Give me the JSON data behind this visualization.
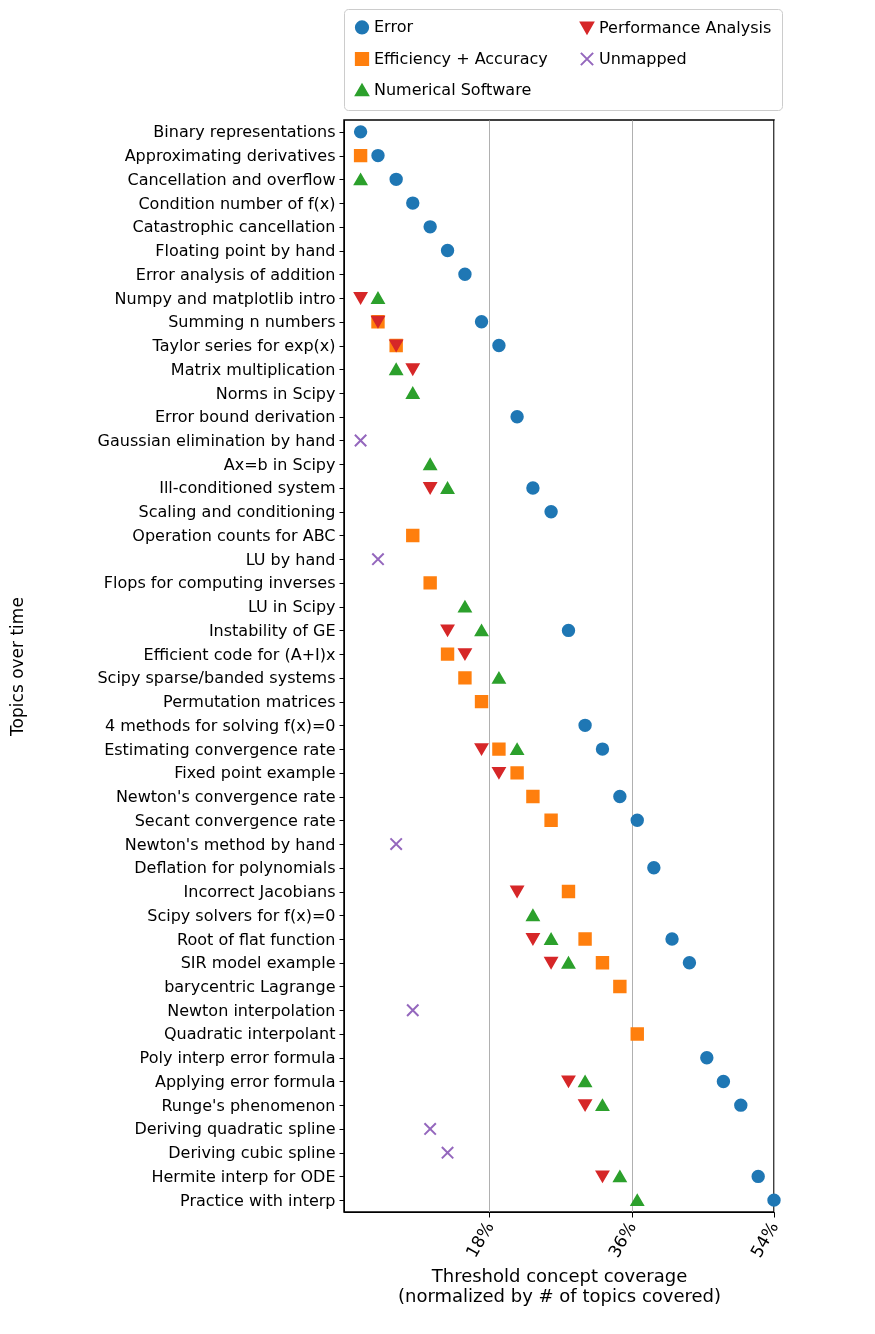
{
  "chart_data": {
    "type": "scatter",
    "xlabel": "Threshold concept coverage\n(normalized by # of topics covered)",
    "ylabel": "Topics over time",
    "categories": [
      "Binary representations",
      "Approximating derivatives",
      "Cancellation and overflow",
      "Condition number of f(x)",
      "Catastrophic cancellation",
      "Floating point by hand",
      "Error analysis of addition",
      "Numpy and matplotlib intro",
      "Summing n numbers",
      "Taylor series for exp(x)",
      "Matrix multiplication",
      "Norms in Scipy",
      "Error bound derivation",
      "Gaussian elimination by hand",
      "Ax=b in Scipy",
      "Ill-conditioned system",
      "Scaling and conditioning",
      "Operation counts for ABC",
      "LU by hand",
      "Flops for computing inverses",
      "LU in Scipy",
      "Instability of GE",
      "Efficient code for (A+I)x",
      "Scipy sparse/banded systems",
      "Permutation matrices",
      "4 methods for solving f(x)=0",
      "Estimating convergence rate",
      "Fixed point example",
      "Newton's convergence rate",
      "Secant convergence rate",
      "Newton's method by hand",
      "Deflation for polynomials",
      "Incorrect Jacobians",
      "Scipy solvers for f(x)=0",
      "Root of flat function",
      "SIR model example",
      "barycentric Lagrange",
      "Newton interpolation",
      "Quadratic interpolant",
      "Poly interp error formula",
      "Applying error formula",
      "Runge's phenomenon",
      "Deriving quadratic spline",
      "Deriving cubic spline",
      "Hermite interp for ODE",
      "Practice with interp"
    ],
    "series": [
      {
        "name": "Error",
        "color": "#1f77b4",
        "marker": "circle",
        "values": [
          1.7,
          3.9,
          6.2,
          8.3,
          10.5,
          12.7,
          14.9,
          null,
          17.0,
          19.2,
          null,
          null,
          21.5,
          null,
          null,
          23.5,
          25.8,
          null,
          null,
          null,
          null,
          28.0,
          null,
          null,
          null,
          30.1,
          32.3,
          null,
          34.5,
          36.7,
          null,
          38.8,
          null,
          null,
          41.1,
          43.3,
          null,
          null,
          null,
          45.5,
          47.6,
          49.8,
          null,
          null,
          52.0,
          54
        ]
      },
      {
        "name": "Efficiency + Accuracy",
        "color": "#ff7f0e",
        "marker": "square",
        "values": [
          null,
          1.7,
          null,
          null,
          null,
          null,
          null,
          null,
          3.9,
          6.2,
          null,
          null,
          null,
          null,
          null,
          null,
          null,
          8.3,
          null,
          10.5,
          null,
          null,
          12.7,
          14.9,
          17.0,
          null,
          19.2,
          21.5,
          23.5,
          25.8,
          null,
          null,
          28.0,
          null,
          30.1,
          32.3,
          34.5,
          null,
          36.7,
          null,
          null,
          null,
          null,
          null,
          null,
          null
        ]
      },
      {
        "name": "Numerical Software",
        "color": "#2ca02c",
        "marker": "triangle",
        "values": [
          null,
          null,
          1.7,
          null,
          null,
          null,
          null,
          3.9,
          null,
          null,
          6.2,
          8.3,
          null,
          null,
          10.5,
          12.7,
          null,
          null,
          null,
          null,
          14.9,
          17.0,
          null,
          19.2,
          null,
          null,
          21.5,
          null,
          null,
          null,
          null,
          null,
          null,
          23.5,
          25.8,
          28.0,
          null,
          null,
          null,
          null,
          30.1,
          32.3,
          null,
          null,
          34.5,
          36.7
        ]
      },
      {
        "name": "Performance Analysis",
        "color": "#d62728",
        "marker": "triangle-down",
        "values": [
          null,
          null,
          null,
          null,
          null,
          null,
          null,
          1.7,
          3.9,
          6.2,
          8.3,
          null,
          null,
          null,
          null,
          10.5,
          null,
          null,
          null,
          null,
          null,
          12.7,
          14.9,
          null,
          null,
          null,
          17.0,
          19.2,
          null,
          null,
          null,
          null,
          21.5,
          null,
          23.5,
          25.8,
          null,
          null,
          null,
          null,
          28.0,
          30.1,
          null,
          null,
          32.3,
          null
        ]
      },
      {
        "name": "Unmapped",
        "color": "#9467bd",
        "marker": "cross",
        "values": [
          null,
          null,
          null,
          null,
          null,
          null,
          null,
          null,
          null,
          null,
          null,
          null,
          null,
          1.7,
          null,
          null,
          null,
          null,
          3.9,
          null,
          null,
          null,
          null,
          null,
          null,
          null,
          null,
          null,
          null,
          null,
          6.2,
          null,
          null,
          null,
          null,
          null,
          null,
          8.3,
          null,
          null,
          null,
          null,
          10.5,
          12.7,
          null,
          null
        ]
      }
    ],
    "orientation": "horizontal",
    "xlim": [
      -0.4,
      54
    ],
    "xticks": [
      {
        "value": 18,
        "label": "18%"
      },
      {
        "value": 36,
        "label": "36%"
      },
      {
        "value": 54,
        "label": "54%"
      }
    ],
    "grid": "x",
    "legend": "top"
  }
}
